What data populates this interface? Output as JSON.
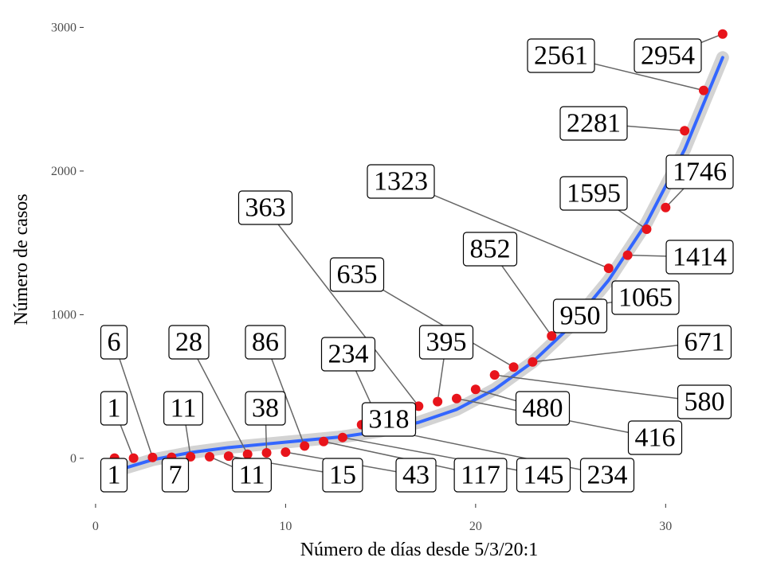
{
  "chart_data": {
    "type": "scatter",
    "x_label": "Número de días desde 5/3/20:1",
    "y_label": "Número de casos",
    "x": [
      1,
      2,
      3,
      4,
      5,
      6,
      7,
      8,
      9,
      10,
      11,
      12,
      13,
      14,
      15,
      16,
      17,
      18,
      19,
      20,
      21,
      22,
      23,
      24,
      25,
      26,
      27,
      28,
      29,
      30,
      31,
      32,
      33
    ],
    "values": [
      1,
      1,
      6,
      7,
      11,
      11,
      15,
      28,
      38,
      43,
      86,
      117,
      145,
      234,
      234,
      318,
      363,
      395,
      416,
      480,
      580,
      635,
      671,
      852,
      950,
      1065,
      1323,
      1414,
      1595,
      1746,
      2281,
      2561,
      2954
    ],
    "color": "#e8141b",
    "fit": {
      "color": "#3366ff",
      "x": [
        1,
        3,
        5,
        7,
        9,
        11,
        13,
        15,
        17,
        19,
        21,
        23,
        25,
        27,
        29,
        31,
        33
      ],
      "values": [
        -90,
        -10,
        40,
        75,
        100,
        125,
        150,
        190,
        250,
        340,
        480,
        670,
        920,
        1240,
        1640,
        2150,
        2790
      ]
    },
    "xlim": [
      -0.5,
      34.6
    ],
    "xticks": [
      0,
      10,
      20,
      30
    ],
    "ylim": [
      -300,
      3080
    ],
    "yticks": [
      0,
      1000,
      2000,
      3000
    ]
  }
}
